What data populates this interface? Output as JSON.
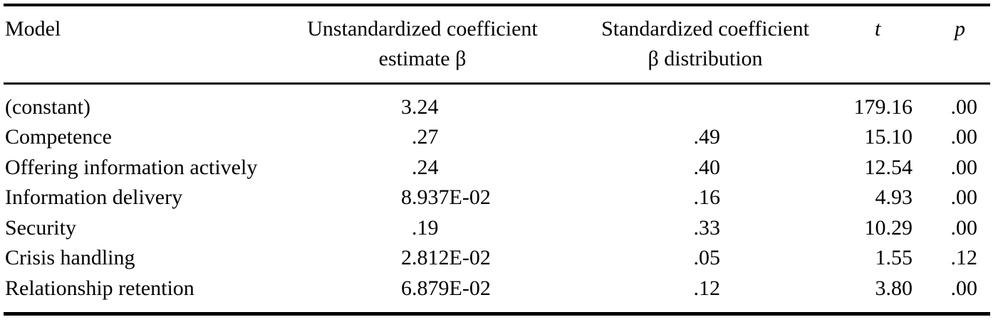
{
  "table": {
    "headers": {
      "model": "Model",
      "unstd_line1": "Unstandardized coefficient",
      "unstd_line2": "estimate β",
      "std_line1": "Standardized coefficient",
      "std_line2": "β distribution",
      "t": "t",
      "p": "p"
    },
    "rows": [
      {
        "model": "(constant)",
        "unstd": "3.24",
        "std": "",
        "t": "179.16",
        "p": ".00"
      },
      {
        "model": "Competence",
        "unstd": ".27",
        "std": ".49",
        "t": "15.10",
        "p": ".00"
      },
      {
        "model": "Offering information actively",
        "unstd": ".24",
        "std": ".40",
        "t": "12.54",
        "p": ".00"
      },
      {
        "model": "Information delivery",
        "unstd": "8.937E-02",
        "std": ".16",
        "t": "4.93",
        "p": ".00"
      },
      {
        "model": "Security",
        "unstd": ".19",
        "std": ".33",
        "t": "10.29",
        "p": ".00"
      },
      {
        "model": "Crisis handling",
        "unstd": "2.812E-02",
        "std": ".05",
        "t": "1.55",
        "p": ".12"
      },
      {
        "model": "Relationship retention",
        "unstd": "6.879E-02",
        "std": ".12",
        "t": "3.80",
        "p": ".00"
      }
    ]
  }
}
